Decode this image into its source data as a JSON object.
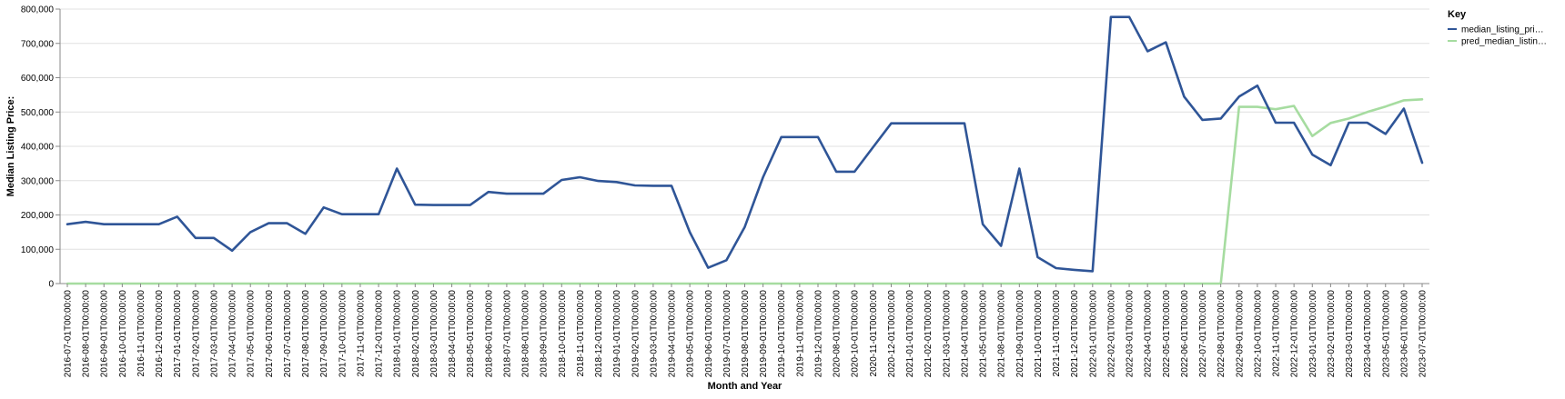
{
  "chart_data": {
    "type": "line",
    "xlabel": "Month and Year",
    "ylabel": "Median Listing Price:",
    "ylim": [
      0,
      800000
    ],
    "y_ticks": [
      0,
      100000,
      200000,
      300000,
      400000,
      500000,
      600000,
      700000,
      800000
    ],
    "y_tick_labels": [
      "0",
      "100,000",
      "200,000",
      "300,000",
      "400,000",
      "500,000",
      "600,000",
      "700,000",
      "800,000"
    ],
    "grid": true,
    "legend": {
      "title": "Key",
      "placement": "top-right"
    },
    "colors": {
      "median": "#2f5597",
      "pred": "#a6dca0",
      "grid": "#e0e0e0",
      "axis": "#888888"
    },
    "categories": [
      "2016-07-01T00:00:00",
      "2016-08-01T00:00:00",
      "2016-09-01T00:00:00",
      "2016-10-01T00:00:00",
      "2016-11-01T00:00:00",
      "2016-12-01T00:00:00",
      "2017-01-01T00:00:00",
      "2017-02-01T00:00:00",
      "2017-03-01T00:00:00",
      "2017-04-01T00:00:00",
      "2017-05-01T00:00:00",
      "2017-06-01T00:00:00",
      "2017-07-01T00:00:00",
      "2017-08-01T00:00:00",
      "2017-09-01T00:00:00",
      "2017-10-01T00:00:00",
      "2017-11-01T00:00:00",
      "2017-12-01T00:00:00",
      "2018-01-01T00:00:00",
      "2018-02-01T00:00:00",
      "2018-03-01T00:00:00",
      "2018-04-01T00:00:00",
      "2018-05-01T00:00:00",
      "2018-06-01T00:00:00",
      "2018-07-01T00:00:00",
      "2018-08-01T00:00:00",
      "2018-09-01T00:00:00",
      "2018-10-01T00:00:00",
      "2018-11-01T00:00:00",
      "2018-12-01T00:00:00",
      "2019-01-01T00:00:00",
      "2019-02-01T00:00:00",
      "2019-03-01T00:00:00",
      "2019-04-01T00:00:00",
      "2019-05-01T00:00:00",
      "2019-06-01T00:00:00",
      "2019-07-01T00:00:00",
      "2019-08-01T00:00:00",
      "2019-09-01T00:00:00",
      "2019-10-01T00:00:00",
      "2019-11-01T00:00:00",
      "2019-12-01T00:00:00",
      "2020-08-01T00:00:00",
      "2020-10-01T00:00:00",
      "2020-11-01T00:00:00",
      "2020-12-01T00:00:00",
      "2021-01-01T00:00:00",
      "2021-02-01T00:00:00",
      "2021-03-01T00:00:00",
      "2021-04-01T00:00:00",
      "2021-05-01T00:00:00",
      "2021-08-01T00:00:00",
      "2021-09-01T00:00:00",
      "2021-10-01T00:00:00",
      "2021-11-01T00:00:00",
      "2021-12-01T00:00:00",
      "2022-01-01T00:00:00",
      "2022-02-01T00:00:00",
      "2022-03-01T00:00:00",
      "2022-04-01T00:00:00",
      "2022-05-01T00:00:00",
      "2022-06-01T00:00:00",
      "2022-07-01T00:00:00",
      "2022-08-01T00:00:00",
      "2022-09-01T00:00:00",
      "2022-10-01T00:00:00",
      "2022-11-01T00:00:00",
      "2022-12-01T00:00:00",
      "2023-01-01T00:00:00",
      "2023-02-01T00:00:00",
      "2023-03-01T00:00:00",
      "2023-04-01T00:00:00",
      "2023-05-01T00:00:00",
      "2023-06-01T00:00:00",
      "2023-07-01T00:00:00"
    ],
    "series": [
      {
        "name": "median_listing_pri…",
        "color": "#2f5597",
        "values": [
          173000,
          180000,
          173000,
          173000,
          173000,
          173000,
          195000,
          133000,
          133000,
          96000,
          150000,
          176000,
          176000,
          145000,
          222000,
          202000,
          202000,
          202000,
          335000,
          230000,
          229000,
          229000,
          229000,
          267000,
          262000,
          262000,
          262000,
          302000,
          310000,
          299000,
          296000,
          286000,
          285000,
          285000,
          150000,
          46000,
          68000,
          165000,
          310000,
          427000,
          427000,
          427000,
          326000,
          326000,
          397000,
          467000,
          467000,
          467000,
          467000,
          467000,
          173000,
          110000,
          335000,
          77000,
          45000,
          40000,
          36000,
          777000,
          777000,
          677000,
          703000,
          545000,
          477000,
          481000,
          545000,
          577000,
          469000,
          469000,
          376000,
          345000,
          469000,
          469000,
          436000,
          510000,
          352000
        ]
      },
      {
        "name": "pred_median_listin…",
        "color": "#a6dca0",
        "values": [
          0,
          0,
          0,
          0,
          0,
          0,
          0,
          0,
          0,
          0,
          0,
          0,
          0,
          0,
          0,
          0,
          0,
          0,
          0,
          0,
          0,
          0,
          0,
          0,
          0,
          0,
          0,
          0,
          0,
          0,
          0,
          0,
          0,
          0,
          0,
          0,
          0,
          0,
          0,
          0,
          0,
          0,
          0,
          0,
          0,
          0,
          0,
          0,
          0,
          0,
          0,
          0,
          0,
          0,
          0,
          0,
          0,
          0,
          0,
          0,
          0,
          0,
          0,
          0,
          515000,
          515000,
          508000,
          518000,
          430000,
          468000,
          481000,
          500000,
          516000,
          534000,
          537000
        ]
      }
    ]
  }
}
